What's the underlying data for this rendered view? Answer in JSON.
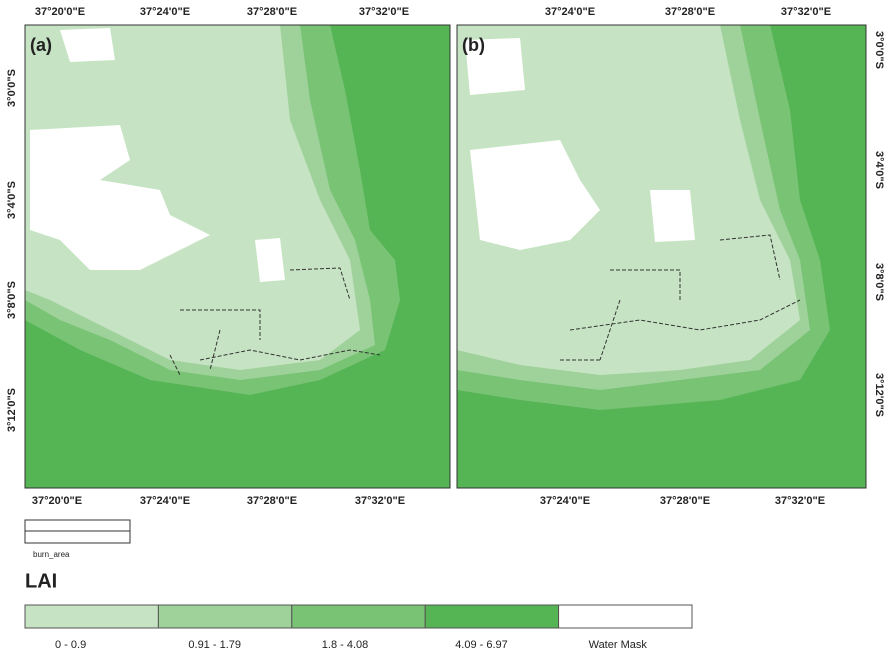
{
  "panels": [
    {
      "label": "(a)",
      "top_ticks": [
        "37°20'0\"E",
        "37°24'0\"E",
        "37°28'0\"E",
        "37°32'0\"E"
      ],
      "bottom_ticks": [
        "37°20'0\"E",
        "37°24'0\"E",
        "37°28'0\"E",
        "37°32'0\"E"
      ],
      "left_ticks": [
        "3°0'0\"S",
        "3°4'0\"S",
        "3°8'0\"S",
        "3°12'0\"S"
      ]
    },
    {
      "label": "(b)",
      "top_ticks": [
        "37°24'0\"E",
        "37°28'0\"E",
        "37°32'0\"E"
      ],
      "bottom_ticks": [
        "37°24'0\"E",
        "37°28'0\"E",
        "37°32'0\"E"
      ],
      "right_ticks": [
        "3°0'0\"S",
        "3°4'0\"S",
        "3°8'0\"S",
        "3°12'0\"S"
      ]
    }
  ],
  "legend": {
    "line_label": "burn_area",
    "title": "LAI",
    "classes": [
      {
        "label": "0 - 0.9",
        "color": "#c6e4c3"
      },
      {
        "label": "0.91 - 1.79",
        "color": "#9fd29b"
      },
      {
        "label": "1.8 - 4.08",
        "color": "#79c375"
      },
      {
        "label": "4.09 - 6.97",
        "color": "#55b454"
      },
      {
        "label": "Water Mask",
        "color": "#ffffff"
      }
    ]
  }
}
